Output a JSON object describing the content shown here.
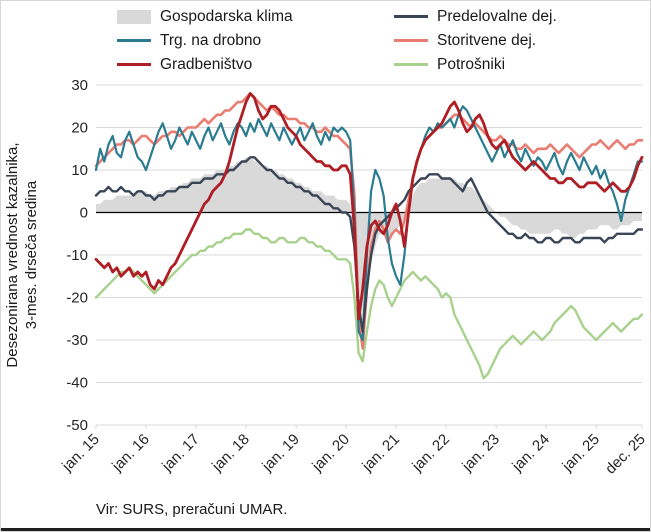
{
  "axis": {
    "y_title_line1": "Desezonirana vrednost kazalnika,",
    "y_title_line2": "3-mes. drseča sredina"
  },
  "source_note": "Vir: SURS, preračuni UMAR.",
  "legend": [
    {
      "label": "Gospodarska klima",
      "color": "#D9D9D9",
      "type": "area"
    },
    {
      "label": "Predelovalne dej.",
      "color": "#3A4657",
      "type": "line"
    },
    {
      "label": "Trg. na drobno",
      "color": "#2B7C90",
      "type": "line"
    },
    {
      "label": "Storitvene dej.",
      "color": "#E97D72",
      "type": "line"
    },
    {
      "label": "Gradbeništvo",
      "color": "#AE1E24",
      "type": "line"
    },
    {
      "label": "Potrošniki",
      "color": "#A9D18E",
      "type": "line"
    }
  ],
  "chart_data": {
    "type": "line",
    "title": "",
    "xlabel": "",
    "ylabel": "Desezonirana vrednost kazalnika, 3-mes. drseča sredina",
    "ylim": [
      -50,
      30
    ],
    "grid": "horizontal",
    "legend_position": "top",
    "x_frequency": "monthly, jan 2015 - dec 2025 (132 points)",
    "y_ticks": [
      30,
      20,
      10,
      0,
      -10,
      -20,
      -30,
      -40,
      -50
    ],
    "x_ticks": [
      {
        "label": "jan. 15",
        "index": 0
      },
      {
        "label": "jan. 16",
        "index": 12
      },
      {
        "label": "jan. 17",
        "index": 24
      },
      {
        "label": "jan. 18",
        "index": 36
      },
      {
        "label": "jan. 19",
        "index": 48
      },
      {
        "label": "jan. 20",
        "index": 60
      },
      {
        "label": "jan. 21",
        "index": 72
      },
      {
        "label": "jan. 22",
        "index": 84
      },
      {
        "label": "jan. 23",
        "index": 96
      },
      {
        "label": "jan. 24",
        "index": 108
      },
      {
        "label": "jan. 25",
        "index": 120
      },
      {
        "label": "dec. 25",
        "index": 131
      }
    ],
    "series": [
      {
        "id": "gospodarska-klima",
        "name": "Gospodarska klima",
        "kind": "area",
        "color": "#D9D9D9",
        "values": [
          2,
          2,
          3,
          3,
          3,
          4,
          4,
          4,
          4,
          4,
          5,
          5,
          5,
          4,
          4,
          5,
          5,
          5,
          6,
          6,
          6,
          7,
          7,
          8,
          8,
          8,
          9,
          9,
          9,
          10,
          10,
          10,
          11,
          11,
          12,
          12,
          13,
          13,
          12,
          12,
          11,
          11,
          10,
          10,
          9,
          9,
          8,
          8,
          7,
          7,
          6,
          6,
          5,
          5,
          5,
          4,
          4,
          4,
          3,
          3,
          3,
          2,
          -6,
          -24,
          -30,
          -20,
          -12,
          -8,
          -5,
          -5,
          -7,
          -6,
          -4,
          -3,
          -1,
          2,
          4,
          6,
          7,
          7,
          8,
          8,
          8,
          8,
          8,
          8,
          8,
          7,
          7,
          6,
          6,
          5,
          4,
          3,
          2,
          1,
          0,
          -1,
          -1,
          -2,
          -3,
          -3,
          -4,
          -4,
          -5,
          -5,
          -5,
          -5,
          -5,
          -5,
          -4,
          -4,
          -5,
          -5,
          -6,
          -6,
          -5,
          -5,
          -4,
          -4,
          -4,
          -3,
          -3,
          -3,
          -4,
          -4,
          -3,
          -3,
          -3,
          -2,
          -2,
          -2
        ]
      },
      {
        "id": "potrosniki",
        "name": "Potrošniki",
        "kind": "line",
        "color": "#A9D18E",
        "width": 2.4,
        "values": [
          -20,
          -19,
          -18,
          -17,
          -16,
          -15,
          -14,
          -14,
          -13,
          -14,
          -15,
          -16,
          -17,
          -18,
          -19,
          -18,
          -17,
          -16,
          -15,
          -14,
          -13,
          -12,
          -11,
          -10,
          -10,
          -9,
          -9,
          -8,
          -8,
          -7,
          -7,
          -6,
          -6,
          -5,
          -5,
          -5,
          -4,
          -4,
          -5,
          -5,
          -6,
          -6,
          -7,
          -7,
          -6,
          -6,
          -7,
          -7,
          -7,
          -6,
          -6,
          -7,
          -7,
          -8,
          -8,
          -9,
          -9,
          -10,
          -11,
          -11,
          -11,
          -12,
          -20,
          -33,
          -35,
          -28,
          -22,
          -18,
          -16,
          -17,
          -20,
          -22,
          -20,
          -18,
          -16,
          -15,
          -14,
          -15,
          -16,
          -15,
          -16,
          -17,
          -18,
          -20,
          -19,
          -20,
          -24,
          -26,
          -28,
          -30,
          -32,
          -34,
          -36,
          -39,
          -38,
          -36,
          -34,
          -32,
          -31,
          -30,
          -29,
          -30,
          -31,
          -30,
          -29,
          -28,
          -29,
          -30,
          -29,
          -28,
          -26,
          -25,
          -24,
          -23,
          -22,
          -23,
          -25,
          -27,
          -28,
          -29,
          -30,
          -29,
          -28,
          -27,
          -26,
          -27,
          -28,
          -27,
          -26,
          -25,
          -25,
          -24
        ]
      },
      {
        "id": "storitvene-dej",
        "name": "Storitvene dej.",
        "kind": "line",
        "color": "#E97D72",
        "width": 2.6,
        "values": [
          11,
          12,
          13,
          14,
          15,
          16,
          16,
          17,
          17,
          16,
          17,
          18,
          18,
          17,
          16,
          17,
          18,
          18,
          19,
          19,
          18,
          19,
          20,
          20,
          20,
          21,
          22,
          21,
          22,
          23,
          23,
          24,
          24,
          25,
          26,
          26,
          27,
          28,
          27,
          26,
          25,
          24,
          25,
          24,
          23,
          23,
          22,
          22,
          22,
          21,
          21,
          20,
          20,
          19,
          19,
          20,
          19,
          18,
          18,
          17,
          16,
          15,
          4,
          -25,
          -32,
          -18,
          -8,
          -4,
          -2,
          -4,
          -7,
          -5,
          -4,
          -5,
          -2,
          3,
          8,
          12,
          15,
          17,
          18,
          19,
          20,
          20,
          21,
          22,
          23,
          23,
          22,
          21,
          20,
          21,
          20,
          19,
          18,
          17,
          17,
          18,
          17,
          16,
          16,
          15,
          15,
          16,
          15,
          14,
          15,
          15,
          15,
          16,
          15,
          14,
          15,
          16,
          15,
          14,
          13,
          14,
          15,
          16,
          16,
          17,
          16,
          15,
          16,
          17,
          16,
          15,
          16,
          16,
          17,
          17
        ]
      },
      {
        "id": "trg-na-drobno",
        "name": "Trg. na drobno",
        "kind": "line",
        "color": "#2B7C90",
        "width": 2.2,
        "values": [
          10,
          15,
          12,
          16,
          18,
          14,
          13,
          17,
          19,
          16,
          13,
          12,
          10,
          13,
          16,
          19,
          21,
          18,
          15,
          17,
          20,
          18,
          16,
          19,
          17,
          15,
          18,
          20,
          17,
          19,
          21,
          18,
          16,
          19,
          21,
          20,
          18,
          21,
          19,
          22,
          20,
          18,
          21,
          19,
          17,
          20,
          18,
          16,
          18,
          20,
          17,
          19,
          21,
          18,
          16,
          19,
          17,
          20,
          19,
          20,
          19,
          17,
          0,
          -28,
          -30,
          -10,
          5,
          10,
          8,
          4,
          -6,
          -12,
          -15,
          -17,
          -10,
          0,
          8,
          12,
          15,
          18,
          20,
          19,
          21,
          20,
          21,
          22,
          20,
          23,
          25,
          24,
          22,
          20,
          18,
          16,
          14,
          12,
          14,
          16,
          13,
          15,
          17,
          14,
          12,
          15,
          13,
          11,
          13,
          12,
          10,
          12,
          14,
          11,
          9,
          12,
          14,
          12,
          10,
          13,
          11,
          9,
          11,
          8,
          10,
          7,
          5,
          2,
          -2,
          3,
          6,
          9,
          12,
          12
        ]
      },
      {
        "id": "predelovalne-dej",
        "name": "Predelovalne dej.",
        "kind": "line",
        "color": "#3A4657",
        "width": 2.4,
        "values": [
          4,
          5,
          5,
          6,
          5,
          5,
          6,
          5,
          5,
          4,
          5,
          5,
          4,
          4,
          3,
          4,
          4,
          5,
          5,
          5,
          6,
          6,
          6,
          7,
          7,
          7,
          8,
          8,
          8,
          9,
          9,
          9,
          10,
          10,
          11,
          12,
          12,
          13,
          13,
          12,
          11,
          10,
          10,
          9,
          8,
          8,
          7,
          7,
          6,
          6,
          5,
          5,
          4,
          4,
          3,
          2,
          2,
          1,
          1,
          0,
          0,
          -1,
          -8,
          -22,
          -28,
          -18,
          -10,
          -5,
          -3,
          -2,
          -1,
          0,
          1,
          2,
          3,
          5,
          6,
          7,
          8,
          8,
          9,
          9,
          9,
          8,
          8,
          8,
          7,
          6,
          5,
          7,
          8,
          6,
          4,
          2,
          0,
          -1,
          -2,
          -3,
          -4,
          -5,
          -5,
          -6,
          -6,
          -5,
          -6,
          -6,
          -7,
          -7,
          -6,
          -6,
          -7,
          -7,
          -6,
          -6,
          -6,
          -7,
          -7,
          -6,
          -6,
          -6,
          -6,
          -6,
          -7,
          -6,
          -6,
          -5,
          -5,
          -5,
          -5,
          -5,
          -4,
          -4
        ]
      },
      {
        "id": "gradbenistvo",
        "name": "Gradbeništvo",
        "kind": "line",
        "color": "#AE1E24",
        "width": 2.8,
        "values": [
          -11,
          -12,
          -13,
          -12,
          -14,
          -13,
          -15,
          -14,
          -13,
          -15,
          -14,
          -15,
          -14,
          -17,
          -18,
          -16,
          -17,
          -15,
          -13,
          -12,
          -10,
          -8,
          -6,
          -4,
          -2,
          0,
          2,
          3,
          5,
          6,
          7,
          9,
          12,
          16,
          20,
          23,
          26,
          28,
          27,
          24,
          22,
          23,
          25,
          25,
          24,
          22,
          20,
          19,
          18,
          16,
          15,
          14,
          13,
          12,
          12,
          11,
          11,
          10,
          10,
          11,
          11,
          9,
          -4,
          -25,
          -18,
          -8,
          -3,
          -2,
          -4,
          -5,
          -3,
          0,
          2,
          -2,
          -8,
          0,
          8,
          12,
          15,
          17,
          18,
          19,
          20,
          21,
          23,
          25,
          26,
          24,
          21,
          19,
          20,
          22,
          23,
          21,
          18,
          16,
          15,
          16,
          17,
          15,
          13,
          12,
          11,
          10,
          11,
          12,
          11,
          10,
          9,
          8,
          8,
          7,
          7,
          8,
          8,
          7,
          6,
          6,
          7,
          7,
          7,
          6,
          5,
          6,
          7,
          6,
          5,
          5,
          6,
          8,
          11,
          13
        ]
      }
    ]
  }
}
